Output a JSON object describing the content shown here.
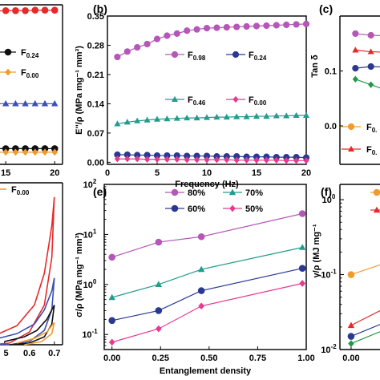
{
  "chart_data": [
    {
      "panel": "(a)",
      "type": "scatter",
      "partial": true,
      "xticks": [
        "15",
        "20"
      ],
      "xlim": [
        9.5,
        20.8
      ],
      "ylim": [
        -0.005,
        0.35
      ],
      "series": [
        {
          "name": "F0.24",
          "color": "#111111",
          "marker": "circle",
          "x": [
            10,
            11,
            12,
            13,
            14,
            15,
            16,
            17,
            18,
            19,
            20
          ],
          "y": [
            0.03,
            0.03,
            0.03,
            0.03,
            0.03,
            0.03,
            0.03,
            0.03,
            0.03,
            0.03,
            0.03
          ]
        },
        {
          "name": "F0.00",
          "color": "#f29a2e",
          "marker": "diamond",
          "x": [
            10,
            11,
            12,
            13,
            14,
            15,
            16,
            17,
            18,
            19,
            20
          ],
          "y": [
            0.022,
            0.022,
            0.022,
            0.022,
            0.022,
            0.022,
            0.022,
            0.022,
            0.022,
            0.022,
            0.022
          ]
        },
        {
          "name": "",
          "color": "#e8292a",
          "marker": "circle",
          "x": [
            10,
            11,
            12,
            13,
            14,
            15,
            16,
            17,
            18,
            19,
            20
          ],
          "y": [
            0.335,
            0.335,
            0.336,
            0.336,
            0.336,
            0.337,
            0.337,
            0.337,
            0.338,
            0.338,
            0.338
          ]
        },
        {
          "name": "",
          "color": "#3c4fb5",
          "marker": "triangle",
          "x": [
            10,
            11,
            12,
            13,
            14,
            15,
            16,
            17,
            18,
            19,
            20
          ],
          "y": [
            0.13,
            0.13,
            0.13,
            0.13,
            0.13,
            0.13,
            0.13,
            0.13,
            0.13,
            0.13,
            0.13
          ]
        }
      ],
      "legend_labels": {
        "f024": "F",
        "f024_sub": "0.24",
        "f000": "F",
        "f000_sub": "0.00"
      }
    },
    {
      "panel": "(b)",
      "type": "scatter",
      "title_label": "(b)",
      "xlabel": "Frequency (Hz)",
      "ylabel": "E''/ρ (MPa mg⁻¹ mm³)",
      "xlim": [
        0,
        20
      ],
      "ylim": [
        -0.005,
        0.35
      ],
      "xticks": [
        "0",
        "5",
        "10",
        "15",
        "20"
      ],
      "yticks": [
        "0.00",
        "0.07",
        "0.14",
        "0.21",
        "0.28",
        "0.35"
      ],
      "series": [
        {
          "name": "F0.98",
          "label": "F",
          "sub": "0.98",
          "color": "#b557b8",
          "marker": "circle",
          "x": [
            1,
            2,
            3,
            4,
            5,
            6,
            7,
            8,
            9,
            10,
            11,
            12,
            13,
            14,
            15,
            16,
            17,
            18,
            19,
            20
          ],
          "y": [
            0.252,
            0.265,
            0.275,
            0.283,
            0.295,
            0.303,
            0.308,
            0.315,
            0.318,
            0.321,
            0.322,
            0.323,
            0.324,
            0.325,
            0.326,
            0.327,
            0.328,
            0.329,
            0.33,
            0.331
          ]
        },
        {
          "name": "F0.24",
          "label": "F",
          "sub": "0.24",
          "color": "#2b3990",
          "marker": "circle",
          "x": [
            1,
            2,
            3,
            4,
            5,
            6,
            7,
            8,
            9,
            10,
            11,
            12,
            13,
            14,
            15,
            16,
            17,
            18,
            19,
            20
          ],
          "y": [
            0.018,
            0.018,
            0.017,
            0.017,
            0.016,
            0.016,
            0.016,
            0.015,
            0.015,
            0.015,
            0.014,
            0.014,
            0.014,
            0.013,
            0.013,
            0.013,
            0.012,
            0.012,
            0.012,
            0.011
          ]
        },
        {
          "name": "F0.46",
          "label": "F",
          "sub": "0.46",
          "color": "#239b8d",
          "marker": "triangle",
          "x": [
            1,
            2,
            3,
            4,
            5,
            6,
            7,
            8,
            9,
            10,
            11,
            12,
            13,
            14,
            15,
            16,
            17,
            18,
            19,
            20
          ],
          "y": [
            0.092,
            0.096,
            0.099,
            0.101,
            0.103,
            0.104,
            0.105,
            0.106,
            0.106,
            0.107,
            0.108,
            0.108,
            0.109,
            0.109,
            0.11,
            0.11,
            0.111,
            0.111,
            0.112,
            0.112
          ]
        },
        {
          "name": "F0.00",
          "label": "F",
          "sub": "0.00",
          "color": "#e8398f",
          "marker": "diamond",
          "x": [
            1,
            2,
            3,
            4,
            5,
            6,
            7,
            8,
            9,
            10,
            11,
            12,
            13,
            14,
            15,
            16,
            17,
            18,
            19,
            20
          ],
          "y": [
            0.008,
            0.008,
            0.008,
            0.007,
            0.007,
            0.007,
            0.007,
            0.006,
            0.006,
            0.006,
            0.006,
            0.006,
            0.005,
            0.005,
            0.005,
            0.005,
            0.005,
            0.004,
            0.004,
            0.004
          ]
        }
      ]
    },
    {
      "panel": "(c)",
      "type": "scatter",
      "partial": true,
      "title_label": "(c)",
      "ylabel": "Tan δ",
      "yticks": [
        "0.0",
        "0.1"
      ],
      "ylim": [
        -0.07,
        0.2
      ],
      "xlim": [
        0,
        6
      ],
      "series": [
        {
          "name": "",
          "color": "#b557b8",
          "marker": "circle",
          "x": [
            1,
            2,
            3,
            4,
            5
          ],
          "y": [
            0.168,
            0.165,
            0.164,
            0.165,
            0.164
          ]
        },
        {
          "name": "",
          "color": "#e8292a",
          "marker": "triangle",
          "x": [
            1,
            2,
            3,
            4,
            5
          ],
          "y": [
            0.138,
            0.135,
            0.134,
            0.135,
            0.136
          ]
        },
        {
          "name": "",
          "color": "#2b3990",
          "marker": "circle",
          "x": [
            1,
            2,
            3,
            4,
            5
          ],
          "y": [
            0.105,
            0.108,
            0.107,
            0.107,
            0.108
          ]
        },
        {
          "name": "",
          "color": "#229a45",
          "marker": "diamond",
          "x": [
            1,
            2,
            3,
            4,
            5
          ],
          "y": [
            0.085,
            0.075,
            0.065,
            0.055,
            0.05
          ]
        }
      ],
      "legend_labels": {
        "a": "F",
        "a_sub": "0.",
        "b": "F",
        "b_sub": "0."
      }
    },
    {
      "panel": "(d)",
      "type": "line",
      "partial": true,
      "xticks": [
        "5",
        "0.6",
        "0.7"
      ],
      "xlim": [
        0.45,
        0.72
      ],
      "ylim": [
        0,
        1
      ],
      "legend_labels": {
        "f000": "F",
        "f000_sub": "0.00"
      },
      "series": [
        {
          "name": "",
          "color": "#e8292a",
          "x": [
            0.45,
            0.55,
            0.62,
            0.66,
            0.69,
            0.7,
            0.69,
            0.66,
            0.6,
            0.52,
            0.45
          ],
          "y": [
            0.05,
            0.12,
            0.25,
            0.45,
            0.75,
            0.93,
            0.55,
            0.25,
            0.08,
            0.01,
            0.0
          ]
        },
        {
          "name": "",
          "color": "#3c4fb5",
          "x": [
            0.45,
            0.55,
            0.62,
            0.66,
            0.69,
            0.7,
            0.69,
            0.66,
            0.6,
            0.52,
            0.45
          ],
          "y": [
            0.03,
            0.07,
            0.13,
            0.22,
            0.34,
            0.42,
            0.22,
            0.09,
            0.02,
            0.0,
            0.0
          ]
        },
        {
          "name": "",
          "color": "#111111",
          "x": [
            0.5,
            0.58,
            0.63,
            0.67,
            0.7,
            0.69,
            0.66,
            0.6,
            0.52
          ],
          "y": [
            0.02,
            0.05,
            0.09,
            0.16,
            0.25,
            0.13,
            0.05,
            0.01,
            0.0
          ]
        },
        {
          "name": "",
          "color": "#f29a2e",
          "x": [
            0.55,
            0.62,
            0.67,
            0.7,
            0.69,
            0.65,
            0.58
          ],
          "y": [
            0.01,
            0.04,
            0.08,
            0.14,
            0.07,
            0.02,
            0.0
          ]
        }
      ]
    },
    {
      "panel": "(e)",
      "type": "line",
      "title_label": "(e)",
      "xlabel": "Entanglement density",
      "ylabel": "σ/ρ (MPa mg⁻¹ mm³)",
      "yscale": "log",
      "xlim": [
        -0.04,
        1.0
      ],
      "ylim": [
        0.05,
        100
      ],
      "xticks": [
        "0.00",
        "0.25",
        "0.50",
        "0.75",
        "1.00"
      ],
      "yticks": [
        {
          "base": "10",
          "exp": "-1"
        },
        {
          "base": "10",
          "exp": "0"
        },
        {
          "base": "10",
          "exp": "1"
        },
        {
          "base": "10",
          "exp": "2"
        }
      ],
      "series": [
        {
          "name": "80%",
          "color": "#b557b8",
          "marker": "circle",
          "x": [
            0,
            0.24,
            0.46,
            0.98
          ],
          "y": [
            3.5,
            7.0,
            9.0,
            26.0
          ]
        },
        {
          "name": "70%",
          "color": "#239b8d",
          "marker": "triangle",
          "x": [
            0,
            0.24,
            0.46,
            0.98
          ],
          "y": [
            0.55,
            1.0,
            2.0,
            5.5
          ]
        },
        {
          "name": "60%",
          "color": "#2b3990",
          "marker": "circle",
          "x": [
            0,
            0.24,
            0.46,
            0.98
          ],
          "y": [
            0.19,
            0.3,
            0.75,
            2.1
          ]
        },
        {
          "name": "50%",
          "color": "#e8398f",
          "marker": "diamond",
          "x": [
            0,
            0.24,
            0.46,
            0.98
          ],
          "y": [
            0.07,
            0.13,
            0.37,
            1.05
          ]
        }
      ]
    },
    {
      "panel": "(f)",
      "type": "line",
      "partial": true,
      "title_label": "(f)",
      "ylabel": "γ/ρ (MJ mg⁻¹",
      "yscale": "log",
      "xticks": [
        "0.00"
      ],
      "xlim": [
        -0.04,
        0.35
      ],
      "ylim": [
        0.01,
        1.6
      ],
      "yticks": [
        {
          "base": "10",
          "exp": "-2"
        },
        {
          "base": "10",
          "exp": "-1"
        },
        {
          "base": "10",
          "exp": "0"
        }
      ],
      "series": [
        {
          "name": "",
          "color": "#f29a2e",
          "marker": "circle",
          "x": [
            0,
            0.24
          ],
          "y": [
            0.1,
            0.2
          ]
        },
        {
          "name": "",
          "color": "#e8292a",
          "marker": "triangle",
          "x": [
            0,
            0.24
          ],
          "y": [
            0.021,
            0.06
          ]
        },
        {
          "name": "",
          "color": "#2b3990",
          "marker": "circle",
          "x": [
            0,
            0.24
          ],
          "y": [
            0.015,
            0.035
          ]
        },
        {
          "name": "",
          "color": "#229a45",
          "marker": "diamond",
          "x": [
            0,
            0.24
          ],
          "y": [
            0.012,
            0.028
          ]
        }
      ],
      "legend_colors": [
        "#f29a2e",
        "#e8292a"
      ]
    }
  ]
}
